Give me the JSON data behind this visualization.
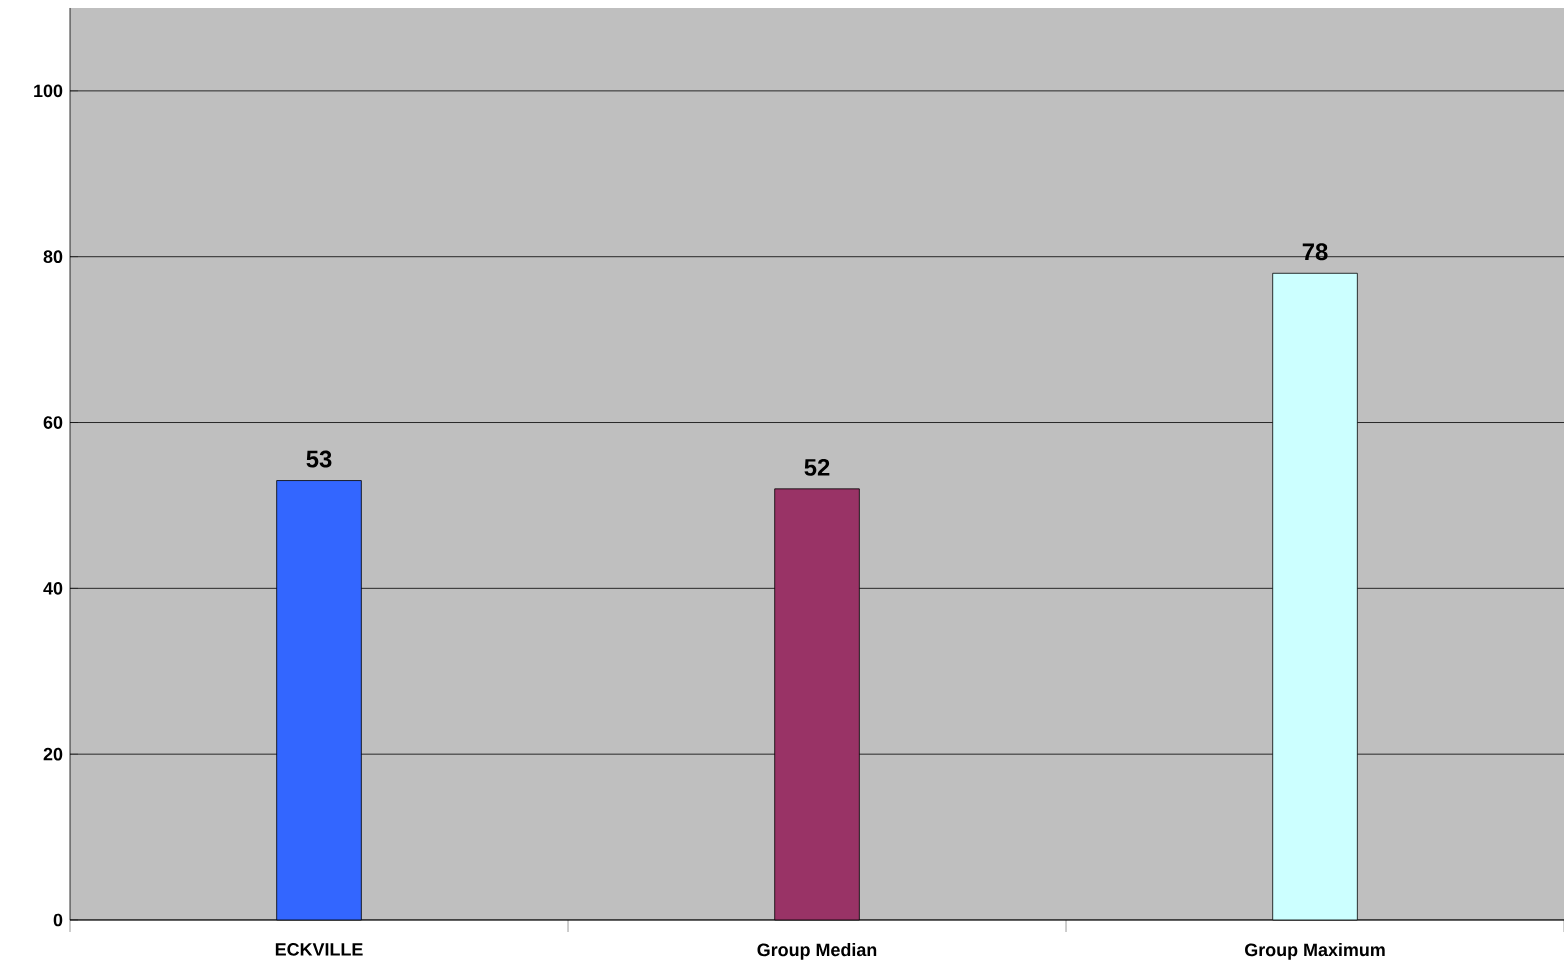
{
  "chart_data": {
    "type": "bar",
    "categories": [
      "ECKVILLE",
      "Group Median",
      "Group Maximum"
    ],
    "values": [
      53,
      52,
      78
    ],
    "colors": [
      "#3366ff",
      "#993366",
      "#ccffff"
    ],
    "ylim": [
      0,
      110
    ],
    "yticks": [
      0,
      20,
      40,
      60,
      80,
      100
    ],
    "grid": "y",
    "data_labels": true
  }
}
